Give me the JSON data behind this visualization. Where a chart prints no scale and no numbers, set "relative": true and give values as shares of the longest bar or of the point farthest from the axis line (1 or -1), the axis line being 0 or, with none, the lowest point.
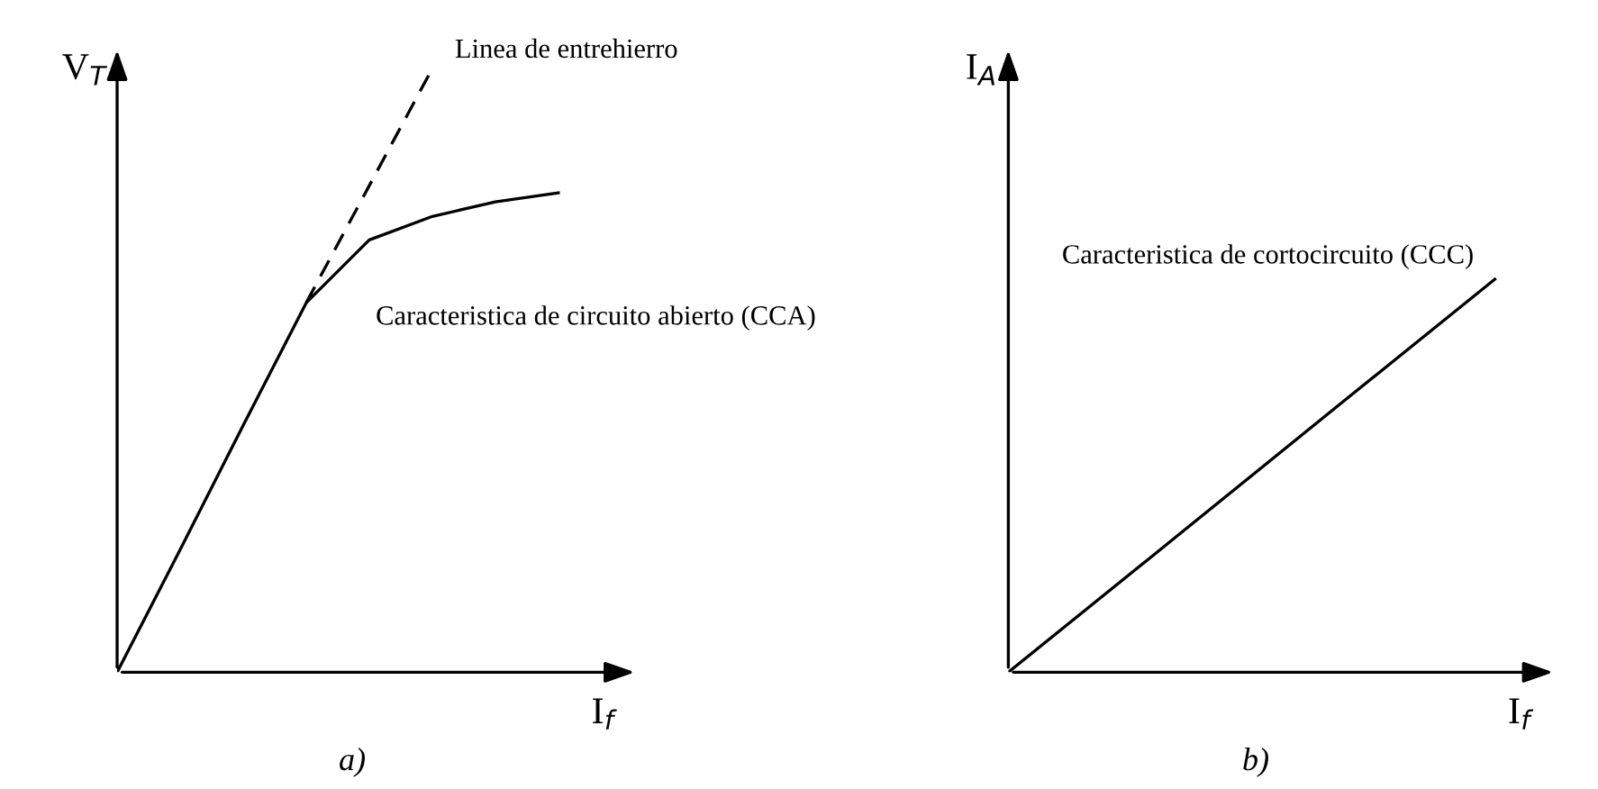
{
  "chart_data": [
    {
      "type": "line",
      "relative": true,
      "xlabel": "I$_{f}$",
      "ylabel": "V$_{T}$",
      "categories": [
        null,
        null,
        null,
        null,
        null,
        null,
        null,
        null,
        null
      ],
      "legend": false,
      "marker": "none",
      "annotations": [
        "a)"
      ],
      "series": [
        {
          "name": "Caracteristica de circuito abierto (CCA)",
          "color": "#000000",
          "line_style": "solid",
          "values": [
            0,
            0.203,
            0.409,
            0.612,
            0.716,
            0.755,
            0.779,
            0.794,
            null
          ]
        },
        {
          "name": "Linea de entrehierro",
          "color": "#000000",
          "line_style": "dashed",
          "values": [
            null,
            null,
            null,
            0.612,
            0.806,
            1,
            null,
            null,
            null
          ]
        }
      ]
    },
    {
      "type": "line",
      "relative": true,
      "xlabel": "I$_{f}$",
      "ylabel": "I$_{A}$",
      "categories": [
        null,
        null,
        null,
        null
      ],
      "legend": false,
      "marker": "none",
      "annotations": [
        "b)"
      ],
      "series": [
        {
          "name": "Caracteristica de cortocircuito (CCC)",
          "color": "#000000",
          "line_style": "solid",
          "values": [
            0,
            0.333,
            0.667,
            1
          ]
        }
      ]
    }
  ]
}
